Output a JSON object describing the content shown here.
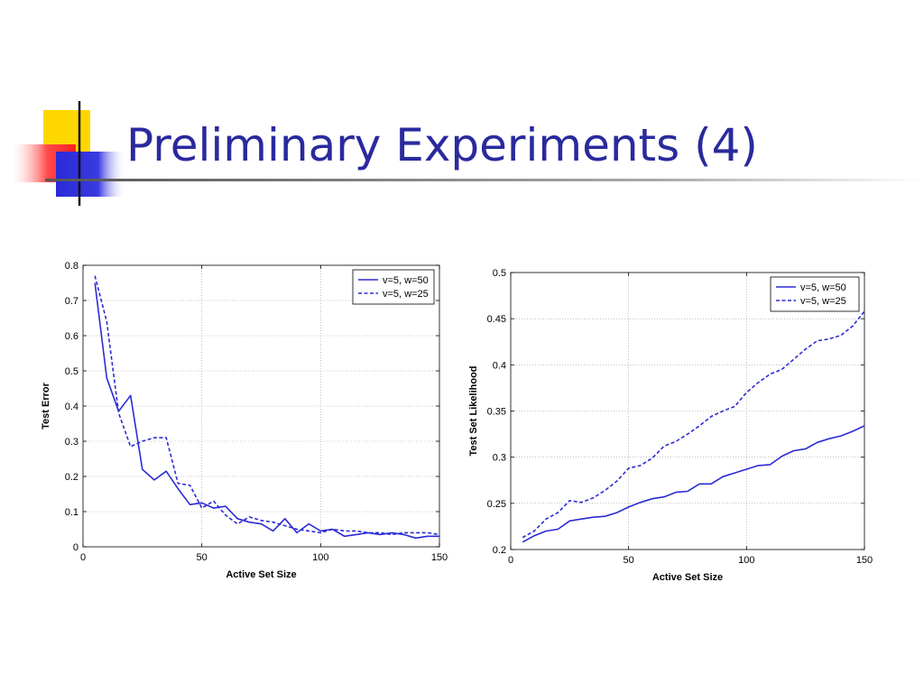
{
  "slide": {
    "title": "Preliminary Experiments (4)",
    "accent_colors": {
      "yellow": "#ffd700",
      "red": "#ff4a4a",
      "blue": "#2a2ad8",
      "title": "#2a2a9e",
      "line": "#2b2bd6"
    }
  },
  "chart_data": [
    {
      "type": "line",
      "xlabel": "Active Set Size",
      "ylabel": "Test Error",
      "xlim": [
        0,
        150
      ],
      "ylim": [
        0,
        0.8
      ],
      "xticks": [
        0,
        50,
        100,
        150
      ],
      "yticks": [
        0,
        0.1,
        0.2,
        0.3,
        0.4,
        0.5,
        0.6,
        0.7,
        0.8
      ],
      "xtick_labels": [
        "0",
        "50",
        "100",
        "150"
      ],
      "ytick_labels": [
        "0",
        "0.1",
        "0.2",
        "0.3",
        "0.4",
        "0.5",
        "0.6",
        "0.7",
        "0.8"
      ],
      "grid": true,
      "legend_position": "top-right",
      "series": [
        {
          "name": "v=5, w=50",
          "style": "solid",
          "color": "#2b2bd6",
          "x": [
            5,
            10,
            15,
            20,
            25,
            30,
            35,
            40,
            45,
            50,
            55,
            60,
            65,
            70,
            75,
            80,
            85,
            90,
            95,
            100,
            105,
            110,
            115,
            120,
            125,
            130,
            135,
            140,
            145,
            150
          ],
          "y": [
            0.75,
            0.48,
            0.385,
            0.43,
            0.22,
            0.19,
            0.215,
            0.165,
            0.12,
            0.125,
            0.11,
            0.115,
            0.08,
            0.07,
            0.065,
            0.045,
            0.08,
            0.04,
            0.065,
            0.045,
            0.05,
            0.03,
            0.035,
            0.04,
            0.035,
            0.04,
            0.035,
            0.025,
            0.03,
            0.03
          ]
        },
        {
          "name": "v=5, w=25",
          "style": "dashed",
          "color": "#2b2bd6",
          "x": [
            5,
            10,
            15,
            20,
            25,
            30,
            35,
            40,
            45,
            50,
            55,
            60,
            65,
            70,
            75,
            80,
            85,
            90,
            95,
            100,
            105,
            110,
            115,
            120,
            125,
            130,
            135,
            140,
            145,
            150
          ],
          "y": [
            0.77,
            0.64,
            0.38,
            0.285,
            0.3,
            0.31,
            0.31,
            0.18,
            0.175,
            0.11,
            0.13,
            0.09,
            0.065,
            0.085,
            0.075,
            0.07,
            0.06,
            0.05,
            0.045,
            0.04,
            0.05,
            0.045,
            0.045,
            0.04,
            0.04,
            0.035,
            0.04,
            0.04,
            0.04,
            0.035
          ]
        }
      ]
    },
    {
      "type": "line",
      "xlabel": "Active Set Size",
      "ylabel": "Test Set Likelihood",
      "xlim": [
        0,
        150
      ],
      "ylim": [
        0.2,
        0.5
      ],
      "xticks": [
        0,
        50,
        100,
        150
      ],
      "yticks": [
        0.2,
        0.25,
        0.3,
        0.35,
        0.4,
        0.45,
        0.5
      ],
      "xtick_labels": [
        "0",
        "50",
        "100",
        "150"
      ],
      "ytick_labels": [
        "0.2",
        "0.25",
        "0.3",
        "0.35",
        "0.4",
        "0.45",
        "0.5"
      ],
      "grid": true,
      "legend_position": "top-right",
      "series": [
        {
          "name": "v=5, w=50",
          "style": "solid",
          "color": "#2b2bd6",
          "x": [
            5,
            10,
            15,
            20,
            25,
            30,
            35,
            40,
            45,
            50,
            55,
            60,
            65,
            70,
            75,
            80,
            85,
            90,
            95,
            100,
            105,
            110,
            115,
            120,
            125,
            130,
            135,
            140,
            145,
            150
          ],
          "y": [
            0.208,
            0.215,
            0.22,
            0.222,
            0.231,
            0.233,
            0.235,
            0.236,
            0.24,
            0.246,
            0.251,
            0.255,
            0.257,
            0.262,
            0.263,
            0.271,
            0.271,
            0.279,
            0.283,
            0.287,
            0.291,
            0.292,
            0.301,
            0.307,
            0.309,
            0.316,
            0.32,
            0.323,
            0.328,
            0.334
          ]
        },
        {
          "name": "v=5, w=25",
          "style": "dashed",
          "color": "#2b2bd6",
          "x": [
            5,
            10,
            15,
            20,
            25,
            30,
            35,
            40,
            45,
            50,
            55,
            60,
            65,
            70,
            75,
            80,
            85,
            90,
            95,
            100,
            105,
            110,
            115,
            120,
            125,
            130,
            135,
            140,
            145,
            150
          ],
          "y": [
            0.213,
            0.22,
            0.233,
            0.24,
            0.253,
            0.251,
            0.256,
            0.264,
            0.274,
            0.288,
            0.291,
            0.299,
            0.312,
            0.317,
            0.325,
            0.334,
            0.344,
            0.35,
            0.355,
            0.37,
            0.381,
            0.39,
            0.395,
            0.406,
            0.417,
            0.426,
            0.428,
            0.432,
            0.442,
            0.458
          ]
        }
      ]
    }
  ]
}
